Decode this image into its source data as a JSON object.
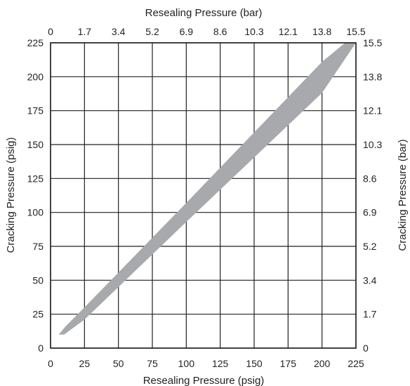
{
  "chart_data": {
    "type": "area",
    "title": "",
    "xlabel": "Resealing Pressure (psig)",
    "ylabel": "Cracking Pressure (psig)",
    "x2label": "Resealing Pressure (bar)",
    "y2label": "Cracking Pressure (bar)",
    "xlim": [
      0,
      225
    ],
    "ylim": [
      0,
      225
    ],
    "x_ticks": [
      "0",
      "25",
      "50",
      "75",
      "100",
      "125",
      "150",
      "175",
      "200",
      "225"
    ],
    "y_ticks": [
      "0",
      "25",
      "50",
      "75",
      "100",
      "125",
      "150",
      "175",
      "200",
      "225"
    ],
    "x2_ticks": [
      "0",
      "1.7",
      "3.4",
      "5.2",
      "6.9",
      "8.6",
      "10.3",
      "12.1",
      "13.8",
      "15.5"
    ],
    "y2_ticks": [
      "0",
      "1.7",
      "3.4",
      "5.2",
      "6.9",
      "8.6",
      "10.3",
      "12.1",
      "13.8",
      "15.5"
    ],
    "grid": true,
    "band_color": "#a7a9ac",
    "series": [
      {
        "band_upper": [
          [
            6,
            10
          ],
          [
            11,
            16
          ],
          [
            25,
            30
          ],
          [
            100,
            107
          ],
          [
            200,
            211
          ],
          [
            217,
            225
          ]
        ],
        "band_lower": [
          [
            6,
            10
          ],
          [
            10,
            10
          ],
          [
            25,
            21
          ],
          [
            100,
            93
          ],
          [
            200,
            188
          ],
          [
            225,
            225
          ]
        ]
      }
    ]
  }
}
